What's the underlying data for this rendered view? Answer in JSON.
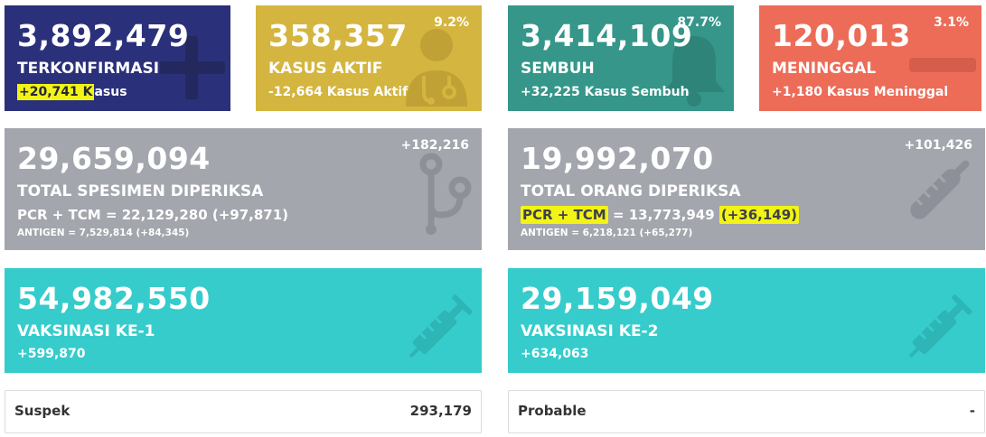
{
  "colors": {
    "confirmed": "#2b307a",
    "active": "#d4b53f",
    "recovered": "#359689",
    "deaths": "#ec6c58",
    "tests": "#a3a6ad",
    "vaccine": "#36cccc",
    "highlight": "#f3f315"
  },
  "confirmed": {
    "value": "3,892,479",
    "title": "TERKONFIRMASI",
    "delta_highlight": "+20,741 K",
    "delta_rest": "asus",
    "icon": "plus-icon"
  },
  "active": {
    "value": "358,357",
    "percent": "9.2%",
    "title": "KASUS AKTIF",
    "delta": "-12,664 Kasus Aktif",
    "icon": "doctor-icon"
  },
  "recovered": {
    "value": "3,414,109",
    "percent": "87.7%",
    "title": "SEMBUH",
    "delta": "+32,225 Kasus Sembuh",
    "icon": "bell-icon"
  },
  "deaths": {
    "value": "120,013",
    "percent": "3.1%",
    "title": "MENINGGAL",
    "delta": "+1,180 Kasus Meninggal",
    "icon": "minus-icon"
  },
  "specimens": {
    "value": "29,659,094",
    "delta": "+182,216",
    "title": "TOTAL SPESIMEN DIPERIKSA",
    "pcr_line": "PCR + TCM = 22,129,280 (+97,871)",
    "antigen_line": "ANTIGEN = 7,529,814 (+84,345)",
    "icon": "stethoscope-icon"
  },
  "people": {
    "value": "19,992,070",
    "delta": "+101,426",
    "title": "TOTAL ORANG DIPERIKSA",
    "pcr_label": "PCR + TCM",
    "pcr_mid": " = 13,773,949 ",
    "pcr_delta": "(+36,149)",
    "antigen_line": "ANTIGEN = 6,218,121 (+65,277)",
    "icon": "thermometer-icon"
  },
  "vaccine1": {
    "value": "54,982,550",
    "title": "VAKSINASI KE-1",
    "delta": "+599,870",
    "icon": "syringe-icon"
  },
  "vaccine2": {
    "value": "29,159,049",
    "title": "VAKSINASI KE-2",
    "delta": "+634,063",
    "icon": "syringe-icon"
  },
  "suspect": {
    "label": "Suspek",
    "value": "293,179"
  },
  "probable": {
    "label": "Probable",
    "value": "-"
  }
}
